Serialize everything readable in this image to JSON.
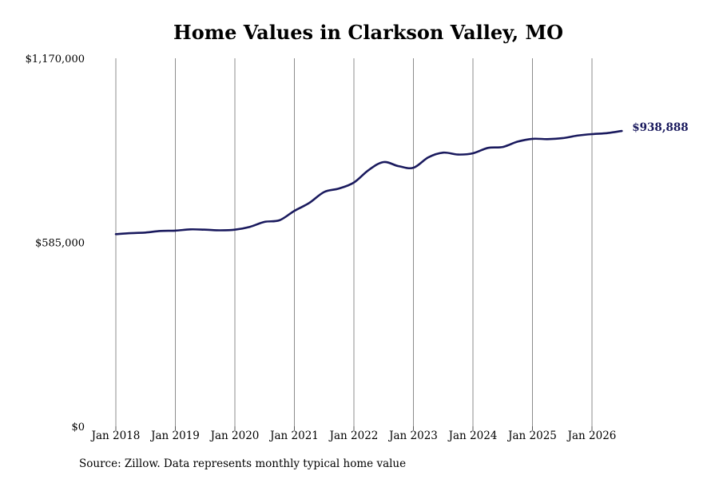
{
  "chart_data": {
    "type": "line",
    "title": "Home Values in Clarkson Valley, MO",
    "source": "Source: Zillow. Data represents monthly typical home value",
    "xlabel": "",
    "ylabel": "",
    "ylim": [
      0,
      1170000
    ],
    "xlim": [
      "2018-01",
      "2026-07"
    ],
    "y_ticks": [
      {
        "value": 0,
        "label": "$0"
      },
      {
        "value": 585000,
        "label": "$585,000"
      },
      {
        "value": 1170000,
        "label": "$1,170,000"
      }
    ],
    "x_ticks": [
      {
        "value": "2018-01",
        "label": "Jan 2018"
      },
      {
        "value": "2019-01",
        "label": "Jan 2019"
      },
      {
        "value": "2020-01",
        "label": "Jan 2020"
      },
      {
        "value": "2021-01",
        "label": "Jan 2021"
      },
      {
        "value": "2022-01",
        "label": "Jan 2022"
      },
      {
        "value": "2023-01",
        "label": "Jan 2023"
      },
      {
        "value": "2024-01",
        "label": "Jan 2024"
      },
      {
        "value": "2025-01",
        "label": "Jan 2025"
      },
      {
        "value": "2026-01",
        "label": "Jan 2026"
      }
    ],
    "grid": "vertical",
    "line_color": "#1a1a5e",
    "end_label": "$938,888",
    "series": [
      {
        "points": [
          [
            "2018-01",
            611000
          ],
          [
            "2018-04",
            614000
          ],
          [
            "2018-07",
            616000
          ],
          [
            "2018-10",
            621000
          ],
          [
            "2019-01",
            622000
          ],
          [
            "2019-04",
            626000
          ],
          [
            "2019-07",
            625000
          ],
          [
            "2019-10",
            623000
          ],
          [
            "2020-01",
            625000
          ],
          [
            "2020-04",
            634000
          ],
          [
            "2020-07",
            650000
          ],
          [
            "2020-10",
            655000
          ],
          [
            "2021-01",
            685000
          ],
          [
            "2021-04",
            710000
          ],
          [
            "2021-07",
            745000
          ],
          [
            "2021-10",
            756000
          ],
          [
            "2022-01",
            775000
          ],
          [
            "2022-04",
            815000
          ],
          [
            "2022-07",
            840000
          ],
          [
            "2022-10",
            827000
          ],
          [
            "2023-01",
            822000
          ],
          [
            "2023-04",
            855000
          ],
          [
            "2023-07",
            870000
          ],
          [
            "2023-10",
            864000
          ],
          [
            "2024-01",
            868000
          ],
          [
            "2024-04",
            885000
          ],
          [
            "2024-07",
            888000
          ],
          [
            "2024-10",
            905000
          ],
          [
            "2025-01",
            914000
          ],
          [
            "2025-04",
            913000
          ],
          [
            "2025-07",
            916000
          ],
          [
            "2025-10",
            924000
          ],
          [
            "2026-01",
            929000
          ],
          [
            "2026-04",
            932000
          ],
          [
            "2026-07",
            938888
          ]
        ]
      }
    ]
  }
}
